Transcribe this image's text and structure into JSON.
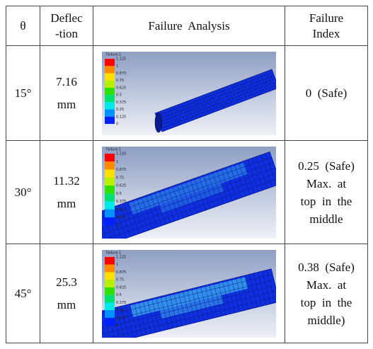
{
  "header": {
    "angle": "θ",
    "deflection_lines": [
      "Deflec",
      "-tion"
    ],
    "analysis": "Failure  Analysis",
    "index_lines": [
      "Failure",
      "Index"
    ]
  },
  "legend": {
    "title": "Failure.1",
    "labels": [
      "1.125",
      "1",
      "0.875",
      "0.75",
      "0.625",
      "0.5",
      "0.375",
      "0.25",
      "0.125",
      "0"
    ]
  },
  "rows": [
    {
      "angle": "15°",
      "deflection": "7.16",
      "unit": "mm",
      "index_lines": [
        "0  (Safe)"
      ]
    },
    {
      "angle": "30°",
      "deflection": "11.32",
      "unit": "mm",
      "index_lines": [
        "0.25  (Safe)",
        "Max.  at",
        "top  in  the",
        "middle"
      ]
    },
    {
      "angle": "45°",
      "deflection": "25.3",
      "unit": "mm",
      "index_lines": [
        "0.38  (Safe)",
        "Max.  at",
        "top  in  the",
        "middle)"
      ]
    }
  ]
}
